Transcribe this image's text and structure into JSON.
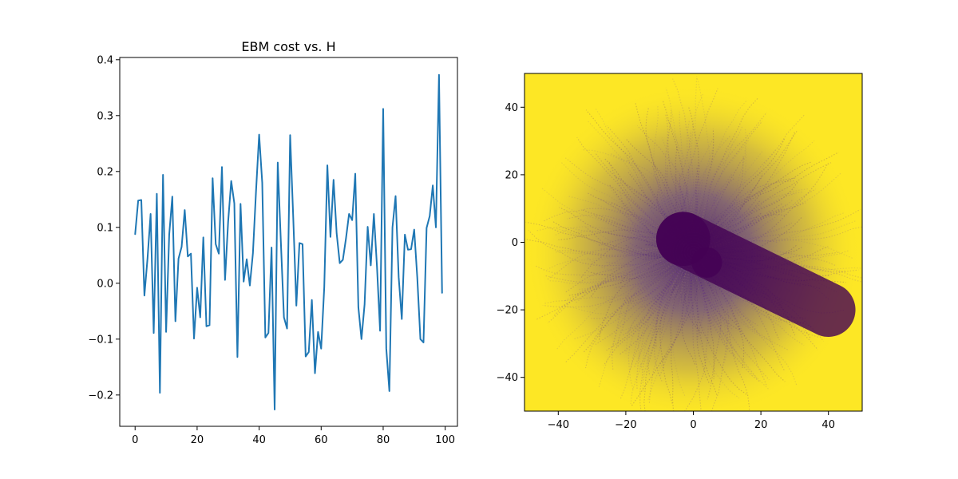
{
  "chart_data": [
    {
      "type": "line",
      "title": "EBM cost vs. H",
      "xlabel": "",
      "ylabel": "",
      "xlim": [
        -4.95,
        103.95
      ],
      "ylim": [
        -0.256,
        0.404
      ],
      "xticks": [
        0,
        20,
        40,
        60,
        80,
        100
      ],
      "xtick_labels": [
        "0",
        "20",
        "40",
        "60",
        "80",
        "100"
      ],
      "yticks": [
        -0.2,
        -0.1,
        0.0,
        0.1,
        0.2,
        0.3,
        0.4
      ],
      "ytick_labels": [
        "−0.2",
        "−0.1",
        "0.0",
        "0.1",
        "0.2",
        "0.3",
        "0.4"
      ],
      "grid": false,
      "line_color": "#1f77b4",
      "series": [
        {
          "x": [
            0,
            1,
            2,
            3,
            4,
            5,
            6,
            7,
            8,
            9,
            10,
            11,
            12,
            13,
            14,
            15,
            16,
            17,
            18,
            19,
            20,
            21,
            22,
            23,
            24,
            25,
            26,
            27,
            28,
            29,
            30,
            31,
            32,
            33,
            34,
            35,
            36,
            37,
            38,
            39,
            40,
            41,
            42,
            43,
            44,
            45,
            46,
            47,
            48,
            49,
            50,
            51,
            52,
            53,
            54,
            55,
            56,
            57,
            58,
            59,
            60,
            61,
            62,
            63,
            64,
            65,
            66,
            67,
            68,
            69,
            70,
            71,
            72,
            73,
            74,
            75,
            76,
            77,
            78,
            79,
            80,
            81,
            82,
            83,
            84,
            85,
            86,
            87,
            88,
            89,
            90,
            91,
            92,
            93,
            94,
            95,
            96,
            97,
            98,
            99
          ],
          "values": [
            0.087,
            0.148,
            0.149,
            -0.022,
            0.044,
            0.124,
            -0.089,
            0.16,
            -0.196,
            0.194,
            -0.087,
            0.087,
            0.155,
            -0.068,
            0.044,
            0.065,
            0.131,
            0.048,
            0.053,
            -0.099,
            -0.008,
            -0.061,
            0.082,
            -0.077,
            -0.075,
            0.188,
            0.07,
            0.053,
            0.208,
            0.006,
            0.11,
            0.183,
            0.143,
            -0.132,
            0.142,
            0.003,
            0.043,
            -0.004,
            0.054,
            0.165,
            0.266,
            0.18,
            -0.097,
            -0.089,
            0.064,
            -0.226,
            0.216,
            0.075,
            -0.061,
            -0.081,
            0.265,
            0.117,
            -0.04,
            0.072,
            0.07,
            -0.131,
            -0.123,
            -0.03,
            -0.161,
            -0.087,
            -0.117,
            -0.007,
            0.211,
            0.083,
            0.185,
            0.089,
            0.036,
            0.042,
            0.08,
            0.124,
            0.113,
            0.196,
            -0.043,
            -0.1,
            -0.038,
            0.101,
            0.032,
            0.124,
            0.03,
            -0.085,
            0.312,
            -0.117,
            -0.193,
            0.1,
            0.156,
            0.011,
            -0.064,
            0.087,
            0.06,
            0.061,
            0.096,
            0.01,
            -0.1,
            -0.106,
            0.099,
            0.12,
            0.175,
            0.1,
            0.373,
            -0.018
          ]
        }
      ]
    },
    {
      "type": "heatmap",
      "title": "",
      "xlabel": "",
      "ylabel": "",
      "xlim": [
        -50,
        50
      ],
      "ylim": [
        -50,
        50
      ],
      "xticks": [
        -40,
        -20,
        0,
        20,
        40
      ],
      "xtick_labels": [
        "−40",
        "−20",
        "0",
        "20",
        "40"
      ],
      "yticks": [
        -40,
        -20,
        0,
        20,
        40
      ],
      "ytick_labels": [
        "−40",
        "−20",
        "0",
        "20",
        "40"
      ],
      "grid": false,
      "colormap": "viridis",
      "background_color": "#fde725",
      "obstacles": [
        {
          "shape": "circle",
          "center": [
            -3,
            1
          ],
          "radius": 8
        },
        {
          "shape": "capsule",
          "from": [
            -3,
            1
          ],
          "to": [
            40,
            -20
          ],
          "radius": 8
        },
        {
          "shape": "circle",
          "center": [
            4,
            -6
          ],
          "radius": 4.5
        }
      ],
      "trajectory_center": [
        0,
        -3
      ],
      "trajectory_color": "#440154"
    }
  ]
}
